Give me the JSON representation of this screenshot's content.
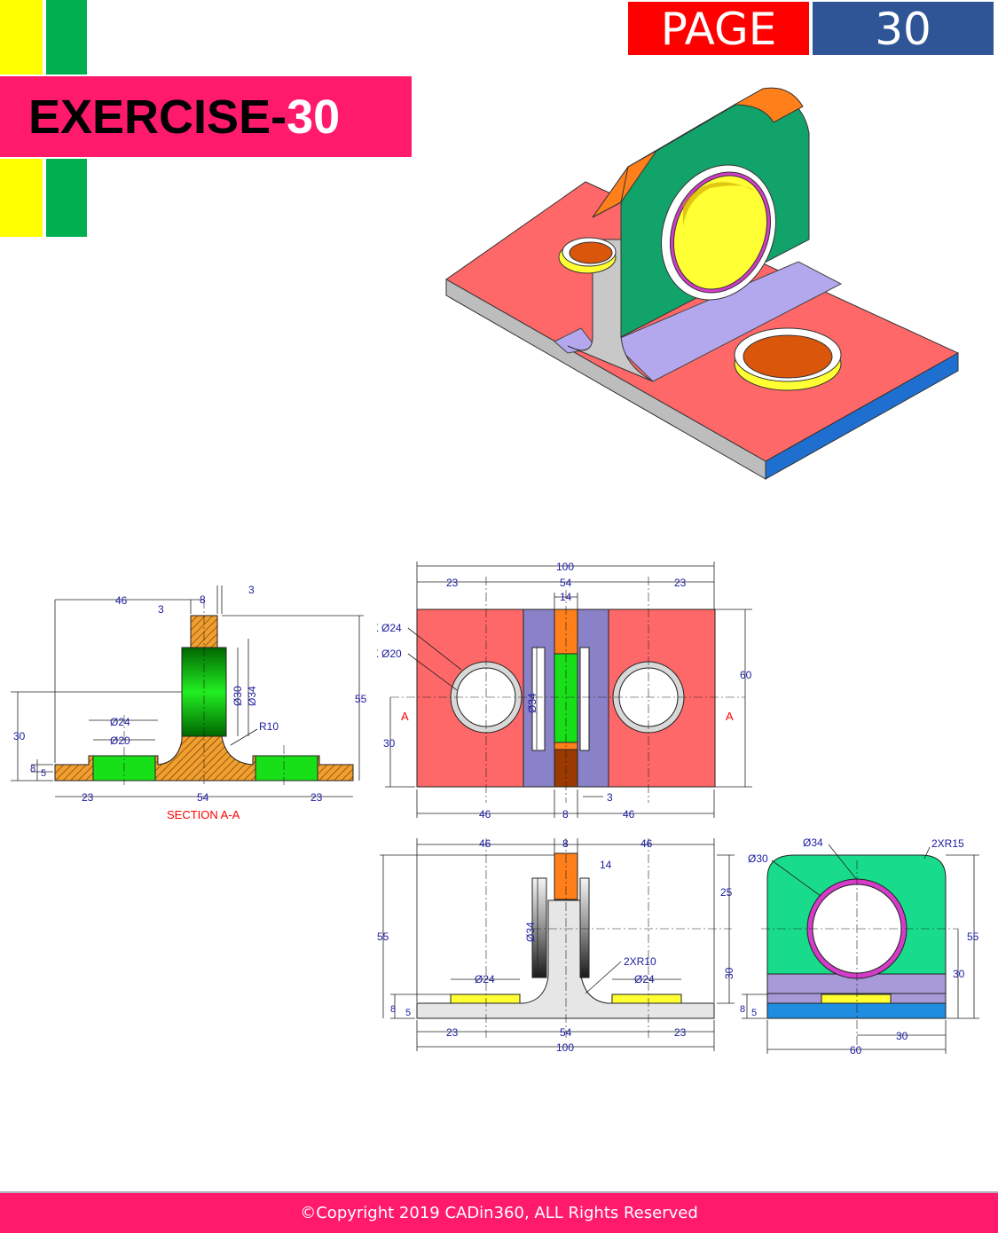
{
  "header": {
    "exercise_prefix": "EXERCISE-",
    "exercise_number": "30",
    "page_label": "PAGE",
    "page_number": "30"
  },
  "colors": {
    "banner": "#ff1a6b",
    "page_label_bg": "#ff0000",
    "page_number_bg": "#2f5597",
    "deco_yellow": "#ffff00",
    "deco_green": "#00b050",
    "dimension_text": "#1a1aa0",
    "section_label": "#ff0000"
  },
  "footer": {
    "copyright": "©Copyright 2019 CADin360, ALL Rights Reserved"
  },
  "drawing": {
    "section_view": {
      "caption": "SECTION A-A",
      "dims": [
        "46",
        "8",
        "3",
        "3",
        "55",
        "30",
        "8",
        "5",
        "Ø30",
        "Ø34",
        "R10",
        "Ø24",
        "Ø20",
        "23",
        "54",
        "23"
      ]
    },
    "top_view": {
      "dims": [
        "100",
        "23",
        "54",
        "23",
        "14",
        "2X Ø24",
        "2X Ø20",
        "60",
        "Ø34",
        "30",
        "A",
        "A",
        "3",
        "46",
        "8",
        "46"
      ]
    },
    "front_view": {
      "dims": [
        "46",
        "8",
        "46",
        "14",
        "25",
        "55",
        "Ø34",
        "2XR10",
        "Ø24",
        "Ø24",
        "30",
        "8",
        "5",
        "23",
        "54",
        "23",
        "100"
      ]
    },
    "side_view": {
      "dims": [
        "Ø34",
        "Ø30",
        "2XR15",
        "55",
        "30",
        "8",
        "5",
        "30",
        "60"
      ]
    }
  }
}
